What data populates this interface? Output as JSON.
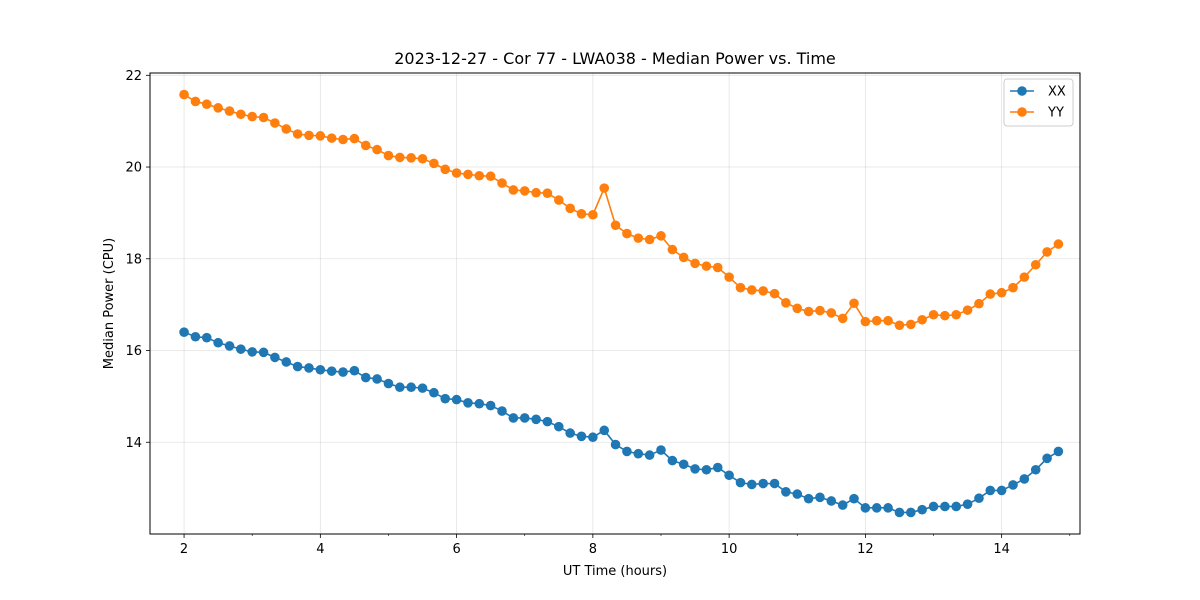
{
  "chart_data": {
    "type": "line",
    "title": "2023-12-27 - Cor 77 - LWA038 - Median Power vs. Time",
    "xlabel": "UT Time (hours)",
    "ylabel": "Median Power (CPU)",
    "xlim": [
      1.5,
      15.15
    ],
    "ylim": [
      12.0,
      22.05
    ],
    "xticks": [
      2,
      4,
      6,
      8,
      10,
      12,
      14
    ],
    "xtick_labels": [
      "2",
      "4",
      "6",
      "8",
      "10",
      "12",
      "14"
    ],
    "yticks": [
      14,
      16,
      18,
      20,
      22
    ],
    "ytick_labels": [
      "14",
      "16",
      "18",
      "20",
      "22"
    ],
    "grid": true,
    "legend_position": "top-right",
    "x": [
      2.0,
      2.167,
      2.333,
      2.5,
      2.667,
      2.833,
      3.0,
      3.167,
      3.333,
      3.5,
      3.667,
      3.833,
      4.0,
      4.167,
      4.333,
      4.5,
      4.667,
      4.833,
      5.0,
      5.167,
      5.333,
      5.5,
      5.667,
      5.833,
      6.0,
      6.167,
      6.333,
      6.5,
      6.667,
      6.833,
      7.0,
      7.167,
      7.333,
      7.5,
      7.667,
      7.833,
      8.0,
      8.167,
      8.333,
      8.5,
      8.667,
      8.833,
      9.0,
      9.167,
      9.333,
      9.5,
      9.667,
      9.833,
      10.0,
      10.167,
      10.333,
      10.5,
      10.667,
      10.833,
      11.0,
      11.167,
      11.333,
      11.5,
      11.667,
      11.833,
      12.0,
      12.167,
      12.333,
      12.5,
      12.667,
      12.833,
      13.0,
      13.167,
      13.333,
      13.5,
      13.667,
      13.833,
      14.0,
      14.167,
      14.333,
      14.5,
      14.667,
      14.833
    ],
    "series": [
      {
        "name": "XX",
        "color": "#1f77b4",
        "values": [
          16.4,
          16.3,
          16.28,
          16.17,
          16.1,
          16.03,
          15.97,
          15.96,
          15.85,
          15.75,
          15.65,
          15.62,
          15.58,
          15.55,
          15.53,
          15.56,
          15.41,
          15.38,
          15.28,
          15.2,
          15.2,
          15.18,
          15.08,
          14.95,
          14.93,
          14.86,
          14.84,
          14.8,
          14.68,
          14.53,
          14.53,
          14.5,
          14.45,
          14.34,
          14.2,
          14.13,
          14.11,
          14.26,
          13.95,
          13.8,
          13.75,
          13.72,
          13.83,
          13.6,
          13.52,
          13.42,
          13.4,
          13.45,
          13.28,
          13.12,
          13.08,
          13.1,
          13.1,
          12.92,
          12.87,
          12.77,
          12.8,
          12.72,
          12.63,
          12.77,
          12.57,
          12.57,
          12.57,
          12.47,
          12.47,
          12.53,
          12.6,
          12.6,
          12.6,
          12.65,
          12.78,
          12.95,
          12.95,
          13.07,
          13.2,
          13.4,
          13.65,
          13.8
        ]
      },
      {
        "name": "YY",
        "color": "#ff7f0e",
        "values": [
          21.58,
          21.43,
          21.37,
          21.29,
          21.22,
          21.15,
          21.1,
          21.08,
          20.96,
          20.83,
          20.72,
          20.69,
          20.68,
          20.63,
          20.6,
          20.62,
          20.47,
          20.38,
          20.25,
          20.21,
          20.2,
          20.18,
          20.08,
          19.95,
          19.87,
          19.84,
          19.81,
          19.8,
          19.65,
          19.5,
          19.48,
          19.44,
          19.43,
          19.28,
          19.1,
          18.98,
          18.96,
          19.54,
          18.73,
          18.55,
          18.45,
          18.42,
          18.5,
          18.2,
          18.03,
          17.9,
          17.84,
          17.81,
          17.6,
          17.37,
          17.32,
          17.3,
          17.24,
          17.04,
          16.92,
          16.85,
          16.87,
          16.82,
          16.7,
          17.03,
          16.63,
          16.65,
          16.65,
          16.55,
          16.57,
          16.67,
          16.78,
          16.76,
          16.78,
          16.88,
          17.02,
          17.23,
          17.26,
          17.37,
          17.6,
          17.87,
          18.15,
          18.32
        ]
      }
    ]
  }
}
